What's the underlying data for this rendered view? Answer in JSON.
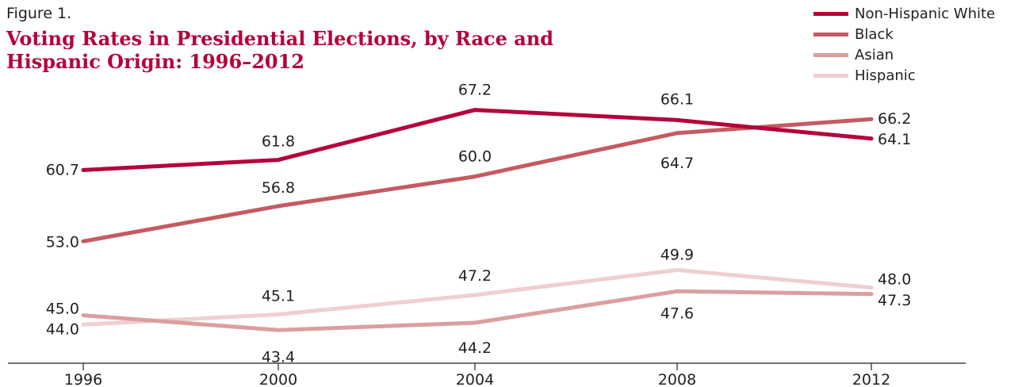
{
  "figure_label": "Figure 1.",
  "title_line1": "Voting Rates in Presidential Elections, by Race and",
  "title_line2": "Hispanic Origin: 1996–2012",
  "chart_data": {
    "type": "line",
    "title": "Voting Rates in Presidential Elections, by Race and Hispanic Origin: 1996–2012",
    "x": [
      "1996",
      "2000",
      "2004",
      "2008",
      "2012"
    ],
    "ylim": [
      40,
      70
    ],
    "grid": false,
    "legend_position": "top-right",
    "series": [
      {
        "name": "Non-Hispanic White",
        "color": "#b5003a",
        "values": [
          60.7,
          61.8,
          67.2,
          66.1,
          64.1
        ],
        "labels": [
          "60.7",
          "61.8",
          "67.2",
          "66.1",
          "64.1"
        ]
      },
      {
        "name": "Black",
        "color": "#c55a61",
        "values": [
          53.0,
          56.8,
          60.0,
          64.7,
          66.2
        ],
        "labels": [
          "53.0",
          "56.8",
          "60.0",
          "64.7",
          "66.2"
        ]
      },
      {
        "name": "Asian",
        "color": "#db9e9e",
        "values": [
          45.0,
          43.4,
          44.2,
          47.6,
          47.3
        ],
        "labels": [
          "45.0",
          "43.4",
          "44.2",
          "47.6",
          "47.3"
        ]
      },
      {
        "name": "Hispanic",
        "color": "#efcfd0",
        "values": [
          44.0,
          45.1,
          47.2,
          49.9,
          48.0
        ],
        "labels": [
          "44.0",
          "45.1",
          "47.2",
          "49.9",
          "48.0"
        ]
      }
    ]
  }
}
